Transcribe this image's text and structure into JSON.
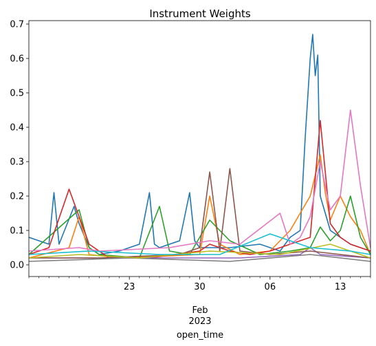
{
  "chart_data": {
    "type": "line",
    "title": "Instrument Weights",
    "xlabel": "open_time",
    "ylabel": "",
    "xlim": [
      "2023-01-13",
      "2023-02-16"
    ],
    "ylim": [
      -0.034,
      0.71
    ],
    "grid": false,
    "legend": "none",
    "y_ticks": [
      {
        "value": 0.0,
        "label": "0.0"
      },
      {
        "value": 0.1,
        "label": "0.1"
      },
      {
        "value": 0.2,
        "label": "0.2"
      },
      {
        "value": 0.3,
        "label": "0.3"
      },
      {
        "value": 0.4,
        "label": "0.4"
      },
      {
        "value": 0.5,
        "label": "0.5"
      },
      {
        "value": 0.6,
        "label": "0.6"
      },
      {
        "value": 0.7,
        "label": "0.7"
      }
    ],
    "x_major_ticks": [
      {
        "date": "2023-01-23",
        "label": "23"
      },
      {
        "date": "2023-01-30",
        "label": "30"
      },
      {
        "date": "2023-02-06",
        "label": "06"
      },
      {
        "date": "2023-02-13",
        "label": "13"
      }
    ],
    "x_minor_tick_dates": [
      "2023-01-13",
      "2023-01-14",
      "2023-01-15",
      "2023-01-16",
      "2023-01-17",
      "2023-01-18",
      "2023-01-19",
      "2023-01-20",
      "2023-01-21",
      "2023-01-22",
      "2023-01-24",
      "2023-01-25",
      "2023-01-26",
      "2023-01-27",
      "2023-01-28",
      "2023-01-29",
      "2023-01-31",
      "2023-02-01",
      "2023-02-02",
      "2023-02-03",
      "2023-02-04",
      "2023-02-05",
      "2023-02-07",
      "2023-02-08",
      "2023-02-09",
      "2023-02-10",
      "2023-02-11",
      "2023-02-12",
      "2023-02-14",
      "2023-02-15",
      "2023-02-16"
    ],
    "x_secondary_label": "Feb\n2023",
    "series": [
      {
        "color": "#1f77b4",
        "x": [
          "2023-01-13",
          "2023-01-15",
          "2023-01-15T12:00",
          "2023-01-16",
          "2023-01-17T12:00",
          "2023-01-18",
          "2023-01-19",
          "2023-01-20",
          "2023-01-22",
          "2023-01-24",
          "2023-01-25",
          "2023-01-25T12:00",
          "2023-01-26",
          "2023-01-28",
          "2023-01-29",
          "2023-01-29T12:00",
          "2023-01-30",
          "2023-02-02",
          "2023-02-05",
          "2023-02-06",
          "2023-02-07",
          "2023-02-08",
          "2023-02-09",
          "2023-02-09T12:00",
          "2023-02-10",
          "2023-02-10T06:00",
          "2023-02-10T12:00",
          "2023-02-10T18:00",
          "2023-02-11",
          "2023-02-12",
          "2023-02-13",
          "2023-02-14",
          "2023-02-15",
          "2023-02-16"
        ],
        "y": [
          0.08,
          0.06,
          0.21,
          0.06,
          0.17,
          0.12,
          0.05,
          0.03,
          0.04,
          0.06,
          0.21,
          0.06,
          0.05,
          0.07,
          0.21,
          0.07,
          0.05,
          0.05,
          0.06,
          0.05,
          0.04,
          0.08,
          0.1,
          0.37,
          0.6,
          0.67,
          0.55,
          0.61,
          0.2,
          0.1,
          0.08,
          0.06,
          0.05,
          0.04
        ]
      },
      {
        "color": "#ff7f0e",
        "x": [
          "2023-01-13",
          "2023-01-17",
          "2023-01-18",
          "2023-01-19",
          "2023-01-22",
          "2023-01-30",
          "2023-01-31",
          "2023-02-01",
          "2023-02-03",
          "2023-02-06",
          "2023-02-08",
          "2023-02-10",
          "2023-02-11",
          "2023-02-11T12:00",
          "2023-02-12",
          "2023-02-13",
          "2023-02-14",
          "2023-02-15",
          "2023-02-16"
        ],
        "y": [
          0.02,
          0.05,
          0.14,
          0.03,
          0.02,
          0.03,
          0.2,
          0.06,
          0.03,
          0.04,
          0.1,
          0.2,
          0.32,
          0.21,
          0.13,
          0.2,
          0.14,
          0.1,
          0.03
        ]
      },
      {
        "color": "#2ca02c",
        "x": [
          "2023-01-13",
          "2023-01-18",
          "2023-01-19",
          "2023-01-20",
          "2023-01-24",
          "2023-01-26",
          "2023-01-27",
          "2023-01-29",
          "2023-01-31",
          "2023-02-02",
          "2023-02-05",
          "2023-02-08",
          "2023-02-10",
          "2023-02-11",
          "2023-02-12",
          "2023-02-13",
          "2023-02-14",
          "2023-02-15",
          "2023-02-16"
        ],
        "y": [
          0.03,
          0.16,
          0.05,
          0.03,
          0.02,
          0.17,
          0.04,
          0.03,
          0.13,
          0.07,
          0.03,
          0.04,
          0.05,
          0.11,
          0.07,
          0.1,
          0.2,
          0.08,
          0.03
        ]
      },
      {
        "color": "#d62728",
        "x": [
          "2023-01-13",
          "2023-01-15",
          "2023-01-17",
          "2023-01-19",
          "2023-01-21",
          "2023-01-25",
          "2023-01-30",
          "2023-01-31",
          "2023-02-02",
          "2023-02-04",
          "2023-02-06",
          "2023-02-08",
          "2023-02-10",
          "2023-02-11",
          "2023-02-12",
          "2023-02-13",
          "2023-02-14",
          "2023-02-16"
        ],
        "y": [
          0.03,
          0.05,
          0.22,
          0.06,
          0.02,
          0.02,
          0.04,
          0.06,
          0.04,
          0.03,
          0.04,
          0.06,
          0.08,
          0.42,
          0.12,
          0.08,
          0.06,
          0.04
        ]
      },
      {
        "color": "#9467bd",
        "x": [
          "2023-01-13",
          "2023-01-20",
          "2023-01-27",
          "2023-02-03",
          "2023-02-09",
          "2023-02-10",
          "2023-02-11",
          "2023-02-16"
        ],
        "y": [
          0.02,
          0.02,
          0.02,
          0.02,
          0.03,
          0.05,
          0.03,
          0.02
        ]
      },
      {
        "color": "#8c564b",
        "x": [
          "2023-01-13",
          "2023-01-20",
          "2023-01-28",
          "2023-01-30",
          "2023-01-31",
          "2023-02-01",
          "2023-02-02",
          "2023-02-03",
          "2023-02-06",
          "2023-02-10",
          "2023-02-16"
        ],
        "y": [
          0.02,
          0.02,
          0.03,
          0.05,
          0.27,
          0.04,
          0.28,
          0.04,
          0.03,
          0.04,
          0.02
        ]
      },
      {
        "color": "#e377c2",
        "x": [
          "2023-01-13",
          "2023-01-18",
          "2023-01-20",
          "2023-01-27",
          "2023-01-31",
          "2023-02-03",
          "2023-02-07",
          "2023-02-08",
          "2023-02-09",
          "2023-02-10",
          "2023-02-11",
          "2023-02-12",
          "2023-02-13",
          "2023-02-14",
          "2023-02-15",
          "2023-02-16"
        ],
        "y": [
          0.04,
          0.05,
          0.04,
          0.05,
          0.07,
          0.06,
          0.15,
          0.06,
          0.08,
          0.14,
          0.3,
          0.16,
          0.2,
          0.45,
          0.23,
          0.05
        ]
      },
      {
        "color": "#7f7f7f",
        "x": [
          "2023-01-13",
          "2023-01-23",
          "2023-02-02",
          "2023-02-10",
          "2023-02-16"
        ],
        "y": [
          0.01,
          0.02,
          0.01,
          0.03,
          0.01
        ]
      },
      {
        "color": "#bcbd22",
        "x": [
          "2023-01-13",
          "2023-01-18",
          "2023-01-24",
          "2023-01-31",
          "2023-02-07",
          "2023-02-12",
          "2023-02-16"
        ],
        "y": [
          0.02,
          0.03,
          0.02,
          0.04,
          0.03,
          0.06,
          0.02
        ]
      },
      {
        "color": "#17becf",
        "x": [
          "2023-01-13",
          "2023-01-19",
          "2023-01-26",
          "2023-02-01",
          "2023-02-06",
          "2023-02-10",
          "2023-02-14",
          "2023-02-16"
        ],
        "y": [
          0.03,
          0.04,
          0.03,
          0.03,
          0.09,
          0.05,
          0.04,
          0.03
        ]
      }
    ]
  }
}
